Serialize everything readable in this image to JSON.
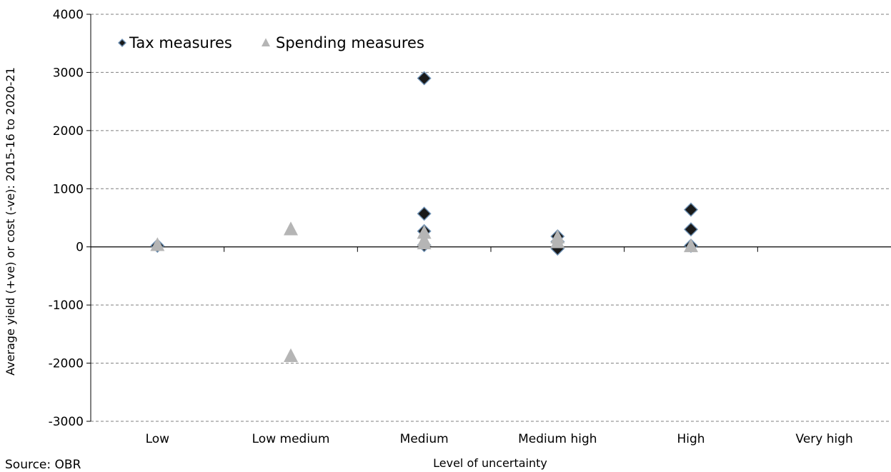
{
  "chart_data": {
    "type": "scatter",
    "xlabel": "Level of uncertainty",
    "ylabel": "Average yield (+ve) or cost (-ve): 2015-16 to 2020-21",
    "categories": [
      "Low",
      "Low medium",
      "Medium",
      "Medium high",
      "High",
      "Very high"
    ],
    "ylim": [
      -3000,
      4000
    ],
    "yticks": [
      4000,
      3000,
      2000,
      1000,
      0,
      -1000,
      -2000,
      -3000
    ],
    "grid": true,
    "legend_position": "top-left",
    "series": [
      {
        "name": "Tax measures",
        "marker": "diamond",
        "color": "#1a1a1a",
        "points": [
          {
            "category": "Low",
            "y": 20
          },
          {
            "category": "Medium",
            "y": 2900
          },
          {
            "category": "Medium",
            "y": 570
          },
          {
            "category": "Medium",
            "y": 270
          },
          {
            "category": "Medium",
            "y": 30
          },
          {
            "category": "Medium high",
            "y": 180
          },
          {
            "category": "Medium high",
            "y": 90
          },
          {
            "category": "Medium high",
            "y": -30
          },
          {
            "category": "High",
            "y": 640
          },
          {
            "category": "High",
            "y": 300
          },
          {
            "category": "High",
            "y": 20
          }
        ]
      },
      {
        "name": "Spending measures",
        "marker": "triangle",
        "color": "#b5b5b5",
        "points": [
          {
            "category": "Low",
            "y": 30
          },
          {
            "category": "Low medium",
            "y": 300
          },
          {
            "category": "Low medium",
            "y": -1880
          },
          {
            "category": "Medium",
            "y": 240
          },
          {
            "category": "Medium",
            "y": 110
          },
          {
            "category": "Medium",
            "y": 60
          },
          {
            "category": "Medium high",
            "y": 160
          },
          {
            "category": "Medium high",
            "y": 80
          },
          {
            "category": "High",
            "y": 10
          }
        ]
      }
    ]
  },
  "source": "Source: OBR"
}
